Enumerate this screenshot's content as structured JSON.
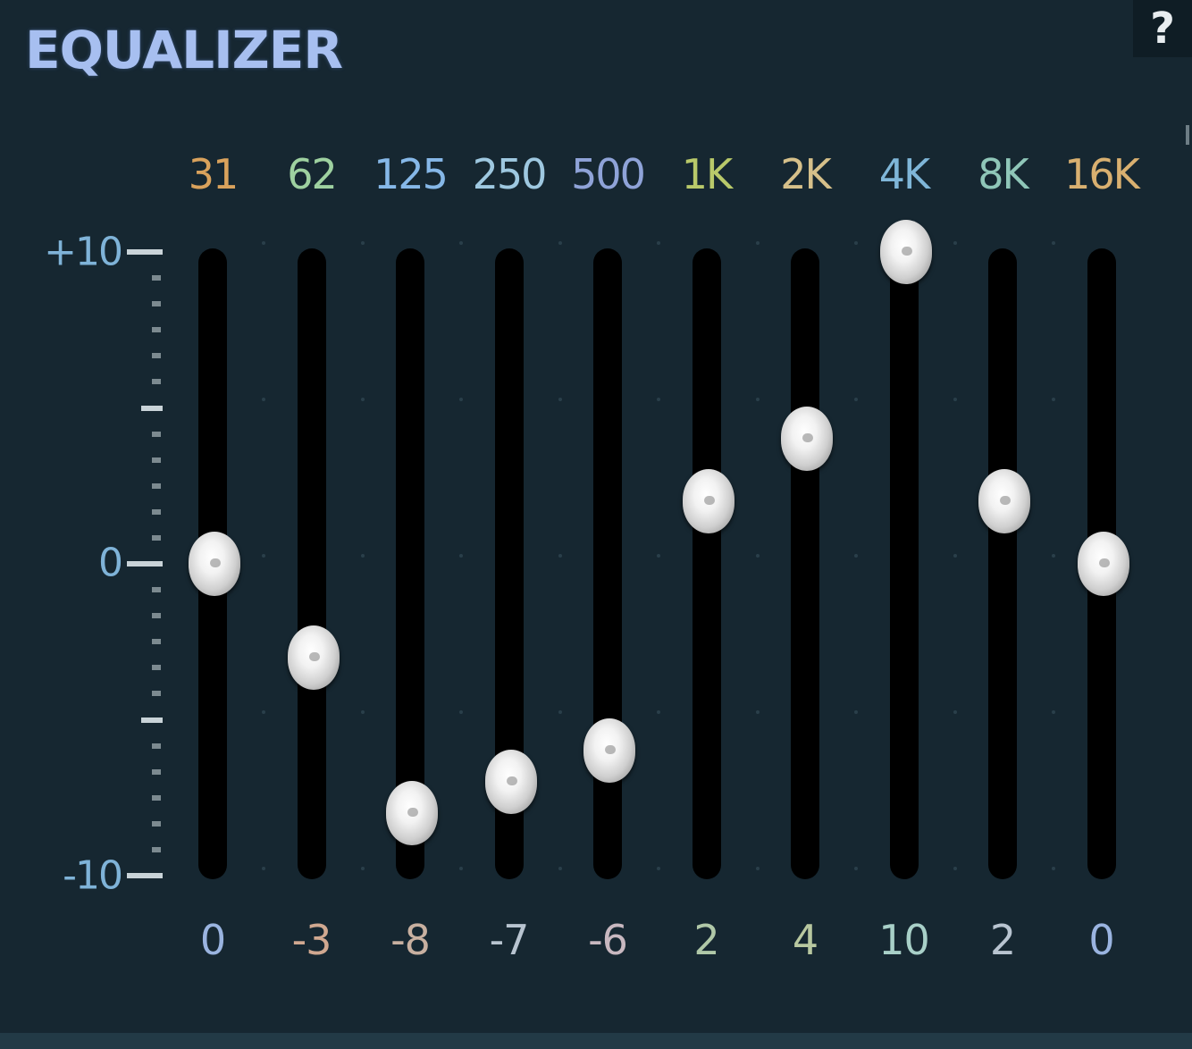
{
  "title": "EQUALIZER",
  "help_label": "?",
  "scale": {
    "max_label": "+10",
    "zero_label": "0",
    "min_label": "-10",
    "max": 10,
    "min": -10
  },
  "bands": [
    {
      "freq": "31",
      "value": 0,
      "value_label": "0"
    },
    {
      "freq": "62",
      "value": -3,
      "value_label": "-3"
    },
    {
      "freq": "125",
      "value": -8,
      "value_label": "-8"
    },
    {
      "freq": "250",
      "value": -7,
      "value_label": "-7"
    },
    {
      "freq": "500",
      "value": -6,
      "value_label": "-6"
    },
    {
      "freq": "1K",
      "value": 2,
      "value_label": "2"
    },
    {
      "freq": "2K",
      "value": 4,
      "value_label": "4"
    },
    {
      "freq": "4K",
      "value": 10,
      "value_label": "10"
    },
    {
      "freq": "8K",
      "value": 2,
      "value_label": "2"
    },
    {
      "freq": "16K",
      "value": 0,
      "value_label": "0"
    }
  ]
}
